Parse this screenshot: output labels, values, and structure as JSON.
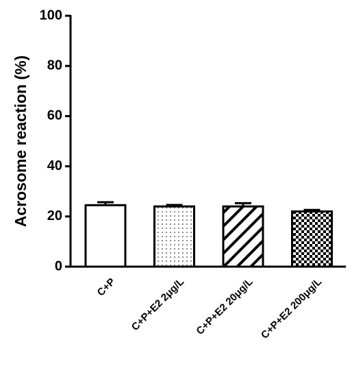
{
  "chart_data": {
    "type": "bar",
    "y_label": "Acrosome reaction (%)",
    "categories": [
      "C+P",
      "C+P+E2 2μg/L",
      "C+P+E2 20μg/L",
      "C+P+E2 200μg/L"
    ],
    "values": [
      24.5,
      24,
      24,
      22
    ],
    "errors": [
      1.2,
      0.6,
      1.3,
      0.6
    ],
    "patterns": [
      "none",
      "dots",
      "hatch",
      "checker"
    ],
    "color": "#000000",
    "ylim": [
      0,
      100
    ],
    "yticks": [
      0,
      20,
      40,
      60,
      80,
      100
    ],
    "grid": false
  }
}
